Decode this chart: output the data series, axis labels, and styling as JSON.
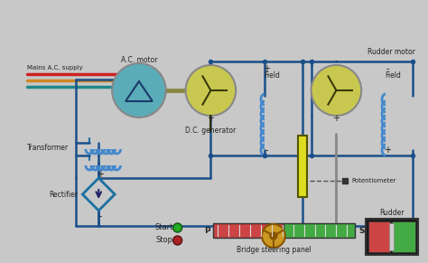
{
  "bg_color": "#c8c8c8",
  "wire_color": "#1a4f8a",
  "wire_color2": "#1a6fa0",
  "ac_motor_color": "#5aacb8",
  "dc_gen_color": "#c8c850",
  "rudder_motor_color": "#c8c850",
  "transformer_color": "#4488cc",
  "field_coil_color": "#4488cc",
  "labels": {
    "mains_ac": "Mains A.C. supply",
    "ac_motor": "A.C. motor",
    "transformer": "Transformer",
    "dc_generator": "D.C. generator",
    "rectifier": "Rectifier",
    "field": "Field",
    "rudder_motor": "Rudder motor",
    "potentiometer": "Potentiometer",
    "start": "Start",
    "stop": "Stop",
    "bridge_panel": "Bridge steering panel",
    "rudder": "Rudder",
    "p_label": "P",
    "s_label": "S"
  }
}
